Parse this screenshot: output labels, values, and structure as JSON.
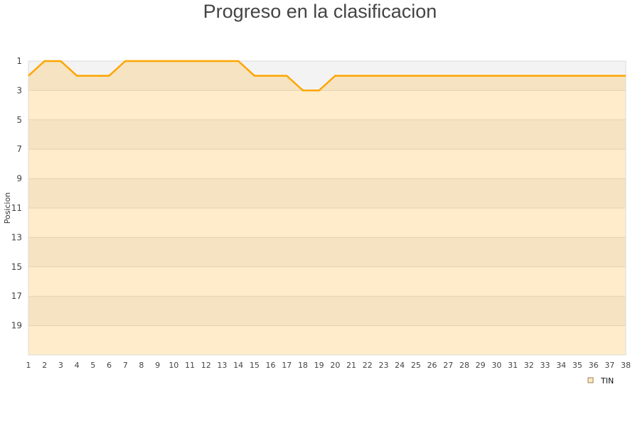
{
  "chart_data": {
    "type": "line",
    "title": "Progreso en la clasificacion",
    "ylabel": "Posicion",
    "xlabel": "",
    "x": [
      1,
      2,
      3,
      4,
      5,
      6,
      7,
      8,
      9,
      10,
      11,
      12,
      13,
      14,
      15,
      16,
      17,
      18,
      19,
      20,
      21,
      22,
      23,
      24,
      25,
      26,
      27,
      28,
      29,
      30,
      31,
      32,
      33,
      34,
      35,
      36,
      37,
      38
    ],
    "series": [
      {
        "name": "TIN",
        "values": [
          2,
          1,
          1,
          2,
          2,
          2,
          1,
          1,
          1,
          1,
          1,
          1,
          1,
          1,
          2,
          2,
          2,
          3,
          3,
          2,
          2,
          2,
          2,
          2,
          2,
          2,
          2,
          2,
          2,
          2,
          2,
          2,
          2,
          2,
          2,
          2,
          2,
          2
        ]
      }
    ],
    "yticks": [
      1,
      3,
      5,
      7,
      9,
      11,
      13,
      15,
      17,
      19
    ],
    "ylim": [
      1,
      21
    ],
    "y_inverted": true,
    "xlim": [
      1,
      38
    ],
    "grid": true,
    "legend_position": "bottom-right",
    "colors": {
      "line": "#ffa500",
      "band_a": "#f5e3c1",
      "band_b": "#feecca",
      "above": "#f3f3f3",
      "legend_swatch": "#fde9c4"
    }
  }
}
